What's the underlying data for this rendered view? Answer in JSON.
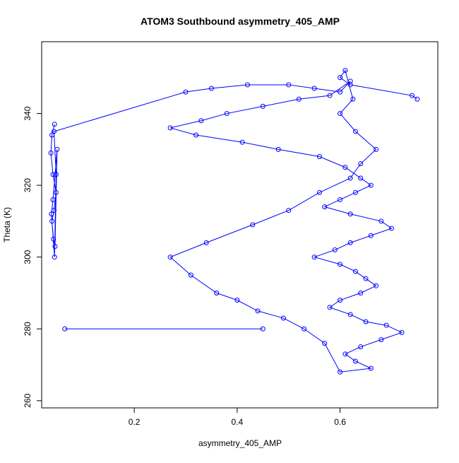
{
  "chart_data": {
    "type": "scatter",
    "title": "ATOM3 Southbound asymmetry_405_AMP",
    "xlabel": "asymmetry_405_AMP",
    "ylabel": "Theta (K)",
    "xlim": [
      0.02,
      0.79
    ],
    "ylim": [
      258,
      360
    ],
    "x_ticks": [
      0.2,
      0.4,
      0.6
    ],
    "y_ticks": [
      260,
      280,
      300,
      320,
      340
    ],
    "x_tick_labels": [
      "0.2",
      "0.4",
      "0.6"
    ],
    "y_tick_labels": [
      "260",
      "280",
      "300",
      "320",
      "340"
    ],
    "marker": "open-circle",
    "connected": true,
    "grid": false,
    "legend": "none",
    "color": "#0000ff",
    "series": [
      {
        "x": [
          0.045,
          0.04,
          0.038,
          0.042,
          0.048,
          0.044,
          0.04,
          0.043,
          0.046,
          0.05,
          0.042,
          0.039,
          0.045,
          0.048,
          0.044,
          0.3,
          0.35,
          0.42,
          0.5,
          0.55,
          0.6,
          0.62,
          0.58,
          0.52,
          0.45,
          0.38,
          0.33,
          0.27,
          0.32,
          0.41,
          0.48,
          0.56,
          0.61,
          0.64,
          0.66,
          0.63,
          0.6,
          0.57,
          0.62,
          0.68,
          0.7,
          0.66,
          0.62,
          0.59,
          0.55,
          0.6,
          0.63,
          0.65,
          0.67,
          0.64,
          0.6,
          0.58,
          0.62,
          0.65,
          0.69,
          0.72,
          0.68,
          0.64,
          0.61,
          0.63,
          0.66,
          0.6,
          0.57,
          0.53,
          0.49,
          0.44,
          0.4,
          0.36,
          0.31,
          0.27,
          0.34,
          0.43,
          0.5,
          0.56,
          0.62,
          0.64,
          0.67,
          0.63,
          0.6,
          0.625,
          0.61,
          0.6,
          0.62,
          0.74,
          0.75
        ],
        "y": [
          337,
          334,
          329,
          323,
          318,
          313,
          310,
          305,
          303,
          330,
          316,
          312,
          300,
          323,
          335,
          346,
          347,
          348,
          348,
          347,
          346,
          349,
          345,
          344,
          342,
          340,
          338,
          336,
          334,
          332,
          330,
          328,
          325,
          322,
          320,
          318,
          316,
          314,
          312,
          310,
          308,
          306,
          304,
          302,
          300,
          298,
          296,
          294,
          292,
          290,
          288,
          286,
          284,
          282,
          281,
          279,
          277,
          275,
          273,
          271,
          269,
          268,
          276,
          280,
          283,
          285,
          288,
          290,
          295,
          300,
          304,
          309,
          313,
          318,
          322,
          326,
          330,
          335,
          340,
          344,
          352,
          350,
          348,
          345,
          344
        ]
      }
    ],
    "isolated_points": {
      "x": [
        0.065,
        0.45
      ],
      "y": [
        280,
        280
      ]
    }
  }
}
